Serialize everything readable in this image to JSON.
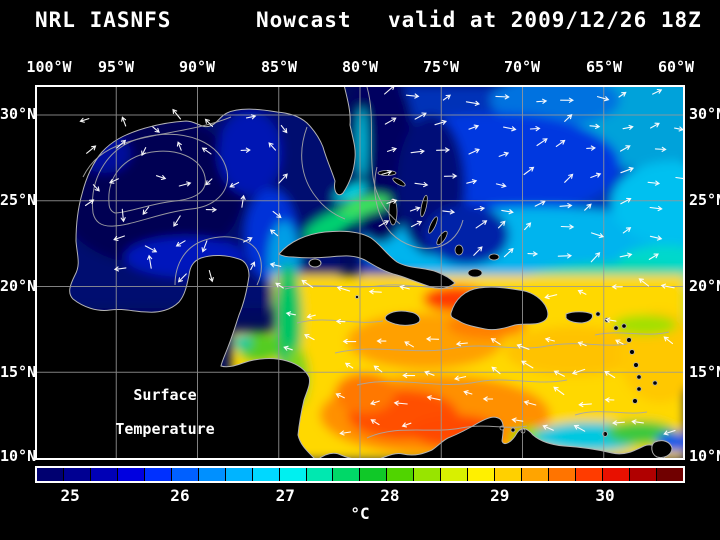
{
  "title": {
    "left": "NRL IASNFS",
    "center": "Nowcast",
    "right": "valid at 2009/12/26 18Z"
  },
  "axes": {
    "lon_ticks": [
      "100°W",
      "95°W",
      "90°W",
      "85°W",
      "80°W",
      "75°W",
      "70°W",
      "65°W",
      "60°W"
    ],
    "lat_ticks": [
      "30°N",
      "25°N",
      "20°N",
      "15°N",
      "10°N"
    ]
  },
  "overlay_label": {
    "line1": "Surface",
    "line2": "Temperature"
  },
  "colorbar": {
    "unit": "°C",
    "tick_labels": [
      "25",
      "26",
      "27",
      "28",
      "29",
      "30"
    ],
    "tick_positions_pct": [
      5.4,
      22.3,
      38.5,
      54.6,
      71.5,
      87.7
    ],
    "segment_colors": [
      "#000070",
      "#000092",
      "#0000b6",
      "#0000e0",
      "#0030ff",
      "#0060ff",
      "#0090ff",
      "#00b4ff",
      "#00d8ff",
      "#00f0f0",
      "#00e8b0",
      "#00d868",
      "#10c828",
      "#50d400",
      "#98e400",
      "#d8f000",
      "#fff000",
      "#ffd000",
      "#ffa400",
      "#ff7400",
      "#ff3c00",
      "#e81000",
      "#b00000",
      "#700000"
    ]
  },
  "colors": {
    "background": "#000000",
    "land": "#000000",
    "coastline": "#b4b4b4",
    "contour": "#a8a8a8",
    "grid": "#989898",
    "vectors": "#ffffff",
    "frame": "#ffffff",
    "text": "#ffffff"
  }
}
